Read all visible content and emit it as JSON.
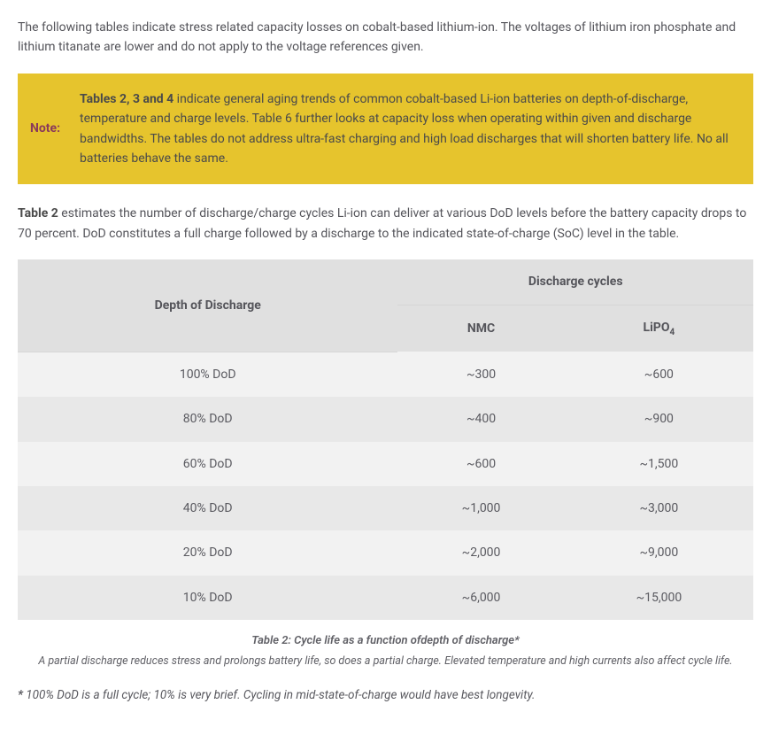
{
  "intro": "The following tables indicate stress related capacity losses on cobalt-based lithium-ion. The voltages of lithium iron phosphate and lithium titanate are lower and do not apply to the voltage references given.",
  "note": {
    "label": "Note:",
    "lead_bold": "Tables 2, 3 and 4",
    "body": " indicate general aging trends of common cobalt-based Li-ion batteries on depth-of-discharge, temperature and charge levels. Table 6 further looks at capacity loss when operating within given and discharge bandwidths. The tables do not address ultra-fast charging and high load discharges that will shorten battery life. No all batteries behave the same."
  },
  "table2_desc": {
    "lead_bold": "Table 2",
    "body": " estimates the number of discharge/charge cycles Li-ion can deliver at various DoD levels before the battery capacity drops to 70 percent. DoD constitutes a full charge followed by a discharge to the indicated state-of-charge (SoC) level in the table."
  },
  "table": {
    "header_dod": "Depth of Discharge",
    "header_cycles": "Discharge cycles",
    "header_nmc": "NMC",
    "header_lipo_prefix": "LiPO",
    "header_lipo_sub": "4",
    "rows": [
      {
        "dod": "100% DoD",
        "nmc": "~300",
        "lipo": "~600"
      },
      {
        "dod": "80% DoD",
        "nmc": "~400",
        "lipo": "~900"
      },
      {
        "dod": "60% DoD",
        "nmc": "~600",
        "lipo": "~1,500"
      },
      {
        "dod": "40% DoD",
        "nmc": "~1,000",
        "lipo": "~3,000"
      },
      {
        "dod": "20% DoD",
        "nmc": "~2,000",
        "lipo": "~9,000"
      },
      {
        "dod": "10% DoD",
        "nmc": "~6,000",
        "lipo": "~15,000"
      }
    ]
  },
  "caption": "Table 2: Cycle life as a function ofdepth of discharge*",
  "subcaption": "A partial discharge reduces stress and prolongs battery life, so does a partial charge. Elevated temperature and high currents also affect cycle life.",
  "footnote": {
    "lead_bold": "*",
    "body": " 100% DoD is a full cycle; 10% is very brief. Cycling in mid-state-of-charge would have best longevity."
  },
  "style": {
    "note_bg": "#e6c42d",
    "note_label_color": "#8a3a5a",
    "text_color": "#54545a",
    "table_header_bg": "#e0e0e0",
    "table_row_odd_bg": "#f2f2f2",
    "table_row_even_bg": "#e8e8e8",
    "font_size_body": 14,
    "font_size_caption": 13,
    "font_size_subcaption": 12.5
  }
}
